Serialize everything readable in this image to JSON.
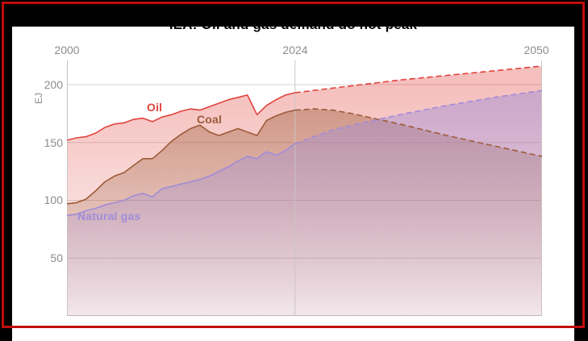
{
  "figure": {
    "background_color": "#000000",
    "card_color": "#ffffff",
    "annotation_border_color": "#c20c0c"
  },
  "chart_data": {
    "type": "area",
    "title": "IEA: Oil and gas demand do not peak",
    "ylabel": "EJ",
    "x_ticks": [
      "2000",
      "2024",
      "2050"
    ],
    "y_ticks": [
      200,
      150,
      100,
      50
    ],
    "x_range": [
      2000,
      2050
    ],
    "y_range": [
      0,
      221
    ],
    "grid": true,
    "forecast_start_year": 2024,
    "forecast_line_style": "dashed",
    "legend_position": "inline-labels",
    "series": [
      {
        "name": "Oil",
        "color": "#e0433c",
        "history": {
          "start_year": 2000,
          "values": [
            152,
            154,
            155,
            158,
            163,
            166,
            167,
            170,
            171,
            168,
            172,
            174,
            177,
            179,
            178,
            181,
            184,
            187,
            189,
            191,
            174,
            182,
            187,
            191,
            193
          ]
        },
        "projection": {
          "years": [
            2024,
            2030,
            2035,
            2040,
            2045,
            2050
          ],
          "values": [
            193,
            199,
            204,
            208,
            212,
            216
          ]
        }
      },
      {
        "name": "Coal",
        "color": "#9c5b38",
        "history": {
          "start_year": 2000,
          "values": [
            97,
            98,
            101,
            108,
            116,
            121,
            124,
            130,
            136,
            136,
            143,
            151,
            157,
            162,
            165,
            159,
            156,
            159,
            162,
            159,
            156,
            169,
            173,
            176,
            178
          ]
        },
        "projection": {
          "years": [
            2024,
            2026,
            2028,
            2030,
            2035,
            2040,
            2045,
            2050
          ],
          "values": [
            178,
            179,
            178,
            175,
            166,
            156,
            147,
            138
          ]
        }
      },
      {
        "name": "Natural gas",
        "color": "#a08cd8",
        "history": {
          "start_year": 2000,
          "values": [
            87,
            88,
            91,
            93,
            96,
            98,
            100,
            104,
            106,
            103,
            110,
            112,
            114,
            116,
            118,
            121,
            125,
            129,
            134,
            138,
            136,
            142,
            139,
            143,
            149
          ]
        },
        "projection": {
          "years": [
            2024,
            2028,
            2030,
            2035,
            2040,
            2045,
            2050
          ],
          "values": [
            149,
            161,
            165,
            174,
            182,
            189,
            195
          ]
        }
      }
    ]
  }
}
